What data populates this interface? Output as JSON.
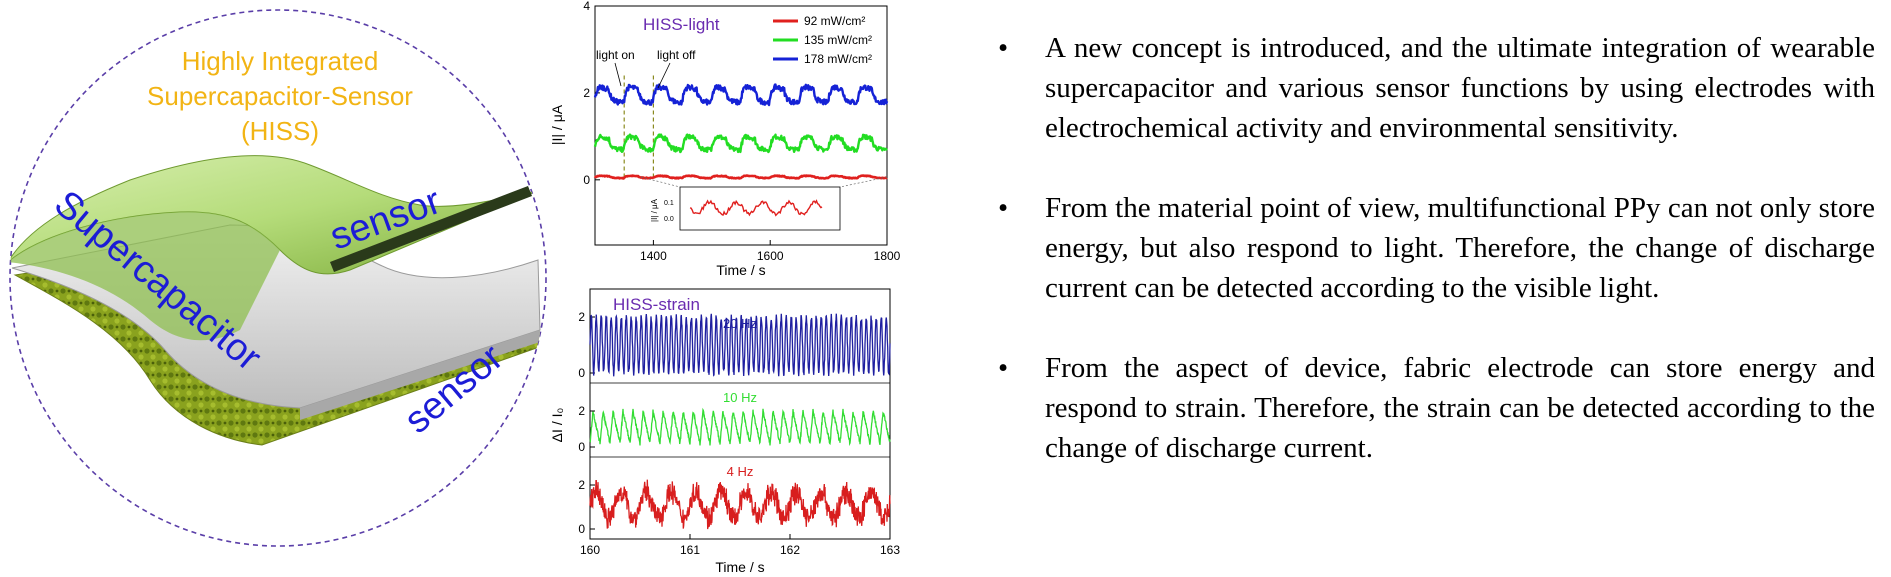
{
  "illustration": {
    "title_lines": [
      "Highly Integrated",
      "Supercapacitor-Sensor",
      "(HISS)"
    ],
    "label_top_sensor": "sensor",
    "label_supercapacitor": "Supercapacitor",
    "label_bottom_sensor": "sensor",
    "colors": {
      "title": "#f2b414",
      "labels": "#1c1cd6",
      "circle": "#5a3ea8"
    }
  },
  "chart_data": [
    {
      "type": "line",
      "title": "HISS-light",
      "xlabel": "Time / s",
      "ylabel": "|I| / μA",
      "xlim": [
        1300,
        1800
      ],
      "ylim": [
        -1.5,
        4
      ],
      "x_ticks": [
        "1400",
        "1600",
        "1800"
      ],
      "y_ticks": [
        "0",
        "2",
        "4"
      ],
      "legend_position": "top-right",
      "annotations": [
        "light on",
        "light off"
      ],
      "series": [
        {
          "name": "92 mW/cm²",
          "color": "#e0201e",
          "baseline": 0.05,
          "amplitude": 0.05
        },
        {
          "name": "135 mW/cm²",
          "color": "#22dd22",
          "baseline": 0.75,
          "amplitude": 0.3
        },
        {
          "name": "178 mW/cm²",
          "color": "#1522d6",
          "baseline": 1.85,
          "amplitude": 0.35
        }
      ],
      "cycle_period_s": 50,
      "inset": {
        "ylabel": "|I| / μA",
        "y_ticks": [
          "0.1",
          "0.0"
        ]
      }
    },
    {
      "type": "line",
      "title": "HISS-strain",
      "xlabel": "Time / s",
      "ylabel": "ΔI / I₀",
      "xlim": [
        160,
        163
      ],
      "x_ticks": [
        "160",
        "161",
        "162",
        "163"
      ],
      "panels": [
        {
          "label": "20 Hz",
          "color": "#1f1fa0",
          "frequency_hz": 20,
          "y_ticks": [
            "2",
            "0"
          ]
        },
        {
          "label": "10 Hz",
          "color": "#33dd33",
          "frequency_hz": 10,
          "y_ticks": [
            "2",
            "0"
          ]
        },
        {
          "label": "4 Hz",
          "color": "#d81e1e",
          "frequency_hz": 4,
          "y_ticks": [
            "2",
            "0"
          ]
        }
      ]
    }
  ],
  "bullets": [
    "A new concept is introduced, and the ultimate integration of wearable supercapacitor and various sensor functions by using electrodes with electrochemical activity and environmental sensitivity.",
    "From the material point of view, multifunctional PPy can not only store energy, but also respond to light. Therefore, the change of discharge current can be detected according to the visible light.",
    "From the aspect of device, fabric electrode can store energy and respond to strain. Therefore, the strain can be detected according to the change of discharge current."
  ],
  "bullet_symbol": "•"
}
